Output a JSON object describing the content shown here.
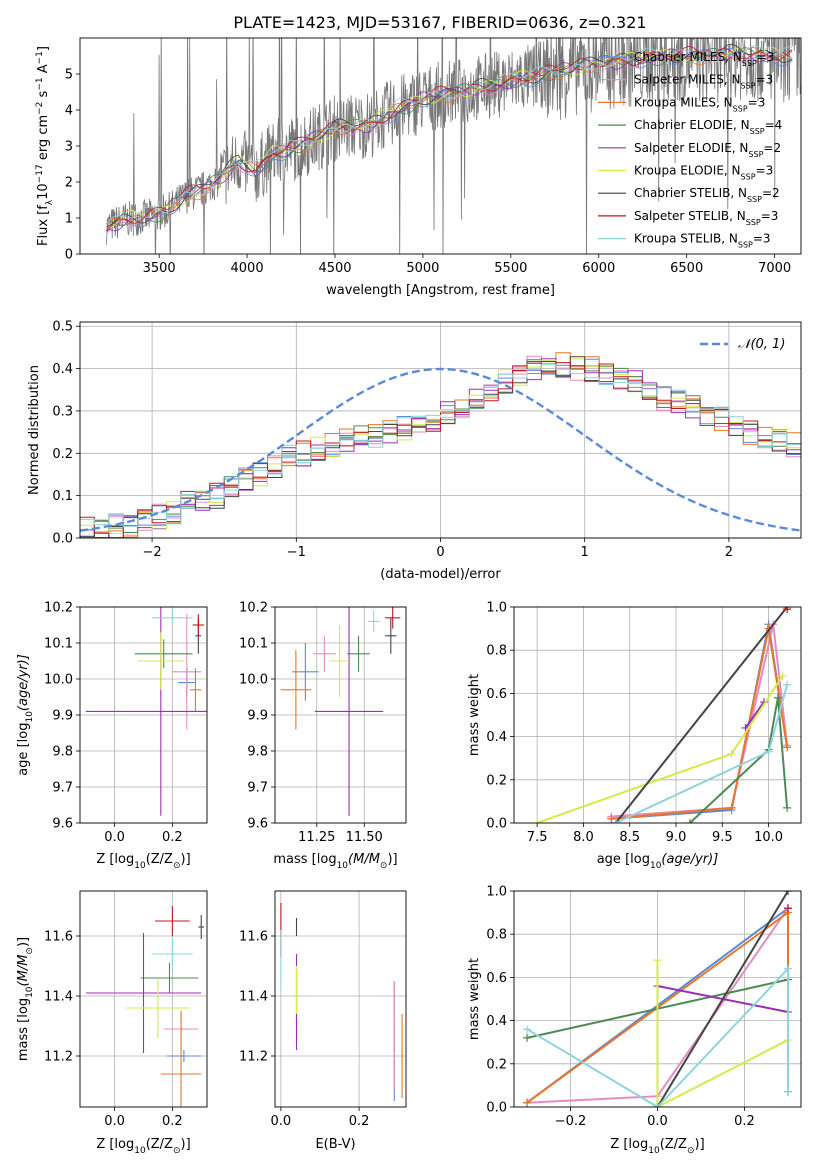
{
  "title": "PLATE=1423, MJD=53167, FIBERID=0636, z=0.321",
  "series": [
    {
      "name": "Chabrier MILES, N$_{SSP}$=3",
      "label_main": "Chabrier MILES, N",
      "label_sub": "SSP",
      "label_tail": "=3",
      "color": "#5b8bd6"
    },
    {
      "name": "Salpeter MILES, N$_{SSP}$=3",
      "label_main": "Salpeter MILES, N",
      "label_sub": "SSP",
      "label_tail": "=3",
      "color": "#e68ac3"
    },
    {
      "name": "Kroupa MILES, N$_{SSP}$=3",
      "label_main": "Kroupa MILES, N",
      "label_sub": "SSP",
      "label_tail": "=3",
      "color": "#e8772a"
    },
    {
      "name": "Chabrier ELODIE, N$_{SSP}$=4",
      "label_main": "Chabrier ELODIE, N",
      "label_sub": "SSP",
      "label_tail": "=4",
      "color": "#4e8a55"
    },
    {
      "name": "Salpeter ELODIE, N$_{SSP}$=2",
      "label_main": "Salpeter ELODIE, N",
      "label_sub": "SSP",
      "label_tail": "=2",
      "color": "#9b30b5"
    },
    {
      "name": "Kroupa ELODIE, N$_{SSP}$=3",
      "label_main": "Kroupa ELODIE, N",
      "label_sub": "SSP",
      "label_tail": "=3",
      "color": "#d4ea4a"
    },
    {
      "name": "Chabrier STELIB, N$_{SSP}$=2",
      "label_main": "Chabrier STELIB, N",
      "label_sub": "SSP",
      "label_tail": "=2",
      "color": "#444444"
    },
    {
      "name": "Salpeter STELIB, N$_{SSP}$=3",
      "label_main": "Salpeter STELIB, N",
      "label_sub": "SSP",
      "label_tail": "=3",
      "color": "#c0181f"
    },
    {
      "name": "Kroupa STELIB, N$_{SSP}$=3",
      "label_main": "Kroupa STELIB, N",
      "label_sub": "SSP",
      "label_tail": "=3",
      "color": "#8fd3dc"
    }
  ],
  "chart_data": [
    {
      "id": "spectrum",
      "type": "line",
      "xlabel": "wavelength [Angstrom, rest frame]",
      "ylabel_parts": [
        "Flux [f",
        "λ",
        "10",
        "−17",
        " erg cm",
        "−2",
        " s",
        "−1",
        " A",
        "−1",
        "]"
      ],
      "xlim": [
        3050,
        7150
      ],
      "ylim": [
        0,
        6
      ],
      "xticks": [
        3500,
        4000,
        4500,
        5000,
        5500,
        6000,
        6500,
        7000
      ],
      "yticks": [
        0,
        1,
        2,
        3,
        4,
        5
      ],
      "data_color": "#777777",
      "model_profile": {
        "x": [
          3200,
          3300,
          3450,
          3550,
          3650,
          3750,
          3850,
          3950,
          4050,
          4150,
          4300,
          4500,
          4700,
          4850,
          5000,
          5200,
          5400,
          5600,
          5800,
          6000,
          6200,
          6400,
          6600,
          6800,
          7000
        ],
        "y": [
          0.75,
          0.95,
          1.05,
          1.2,
          1.6,
          1.8,
          2.1,
          2.6,
          2.3,
          2.8,
          3.0,
          3.5,
          3.6,
          4.0,
          4.3,
          4.5,
          4.7,
          4.9,
          5.1,
          5.3,
          5.4,
          5.5,
          5.5,
          5.6,
          5.5
        ]
      }
    },
    {
      "id": "residuals",
      "type": "step",
      "xlabel": "(data-model)/error",
      "ylabel": "Normed distribution",
      "xlim": [
        -2.5,
        2.5
      ],
      "ylim": [
        0,
        0.51
      ],
      "xticks": [
        -2,
        -1,
        0,
        1,
        2
      ],
      "xtick_labels": [
        "−2",
        "−1",
        "0",
        "1",
        "2"
      ],
      "yticks": [
        0.0,
        0.1,
        0.2,
        0.3,
        0.4,
        0.5
      ],
      "ytick_labels": [
        "0.0",
        "0.1",
        "0.2",
        "0.3",
        "0.4",
        "0.5"
      ],
      "bin_width": 0.1,
      "bins_start": -2.5,
      "base_profile": [
        0.02,
        0.02,
        0.03,
        0.03,
        0.04,
        0.05,
        0.06,
        0.08,
        0.09,
        0.1,
        0.12,
        0.14,
        0.15,
        0.17,
        0.19,
        0.2,
        0.21,
        0.22,
        0.23,
        0.24,
        0.24,
        0.25,
        0.26,
        0.27,
        0.28,
        0.3,
        0.31,
        0.33,
        0.35,
        0.37,
        0.39,
        0.4,
        0.4,
        0.41,
        0.4,
        0.4,
        0.39,
        0.38,
        0.37,
        0.35,
        0.33,
        0.32,
        0.31,
        0.29,
        0.28,
        0.26,
        0.25,
        0.24,
        0.23,
        0.22,
        0.21,
        0.2,
        0.19,
        0.18,
        0.17,
        0.15,
        0.14,
        0.12,
        0.11,
        0.1,
        0.09,
        0.08,
        0.07,
        0.06,
        0.06,
        0.05,
        0.05,
        0.04,
        0.04,
        0.03,
        0.03,
        0.03,
        0.02,
        0.02,
        0.02,
        0.02,
        0.02,
        0.02,
        0.02,
        0.02
      ],
      "legend_label": "𝒩(0, 1)",
      "gaussian": {
        "mu": 0,
        "sigma": 1,
        "color": "#5b8bd6"
      }
    },
    {
      "id": "age_vs_Z",
      "type": "errorbar",
      "xlabel_main": "Z [log",
      "xlabel_sub": "10",
      "xlabel_tail": "(Z/Z",
      "xlabel_end": ")]",
      "ylabel_main": "age  [log",
      "ylabel_sub": "10",
      "ylabel_tail": "(age/yr)]",
      "xlim": [
        -0.12,
        0.32
      ],
      "ylim": [
        9.6,
        10.2
      ],
      "xticks": [
        0.0,
        0.2
      ],
      "xtick_labels": [
        "0.0",
        "0.2"
      ],
      "yticks": [
        9.6,
        9.7,
        9.8,
        9.9,
        10.0,
        10.1,
        10.2
      ],
      "ytick_labels": [
        "9.6",
        "9.7",
        "9.8",
        "9.9",
        "10.0",
        "10.1",
        "10.2"
      ],
      "points": [
        {
          "s": 0,
          "x": 0.25,
          "xerr": 0.03,
          "y": 9.99,
          "yerr": 0.04
        },
        {
          "s": 1,
          "x": 0.25,
          "xerr": 0.05,
          "y": 10.02,
          "yerr": 0.16
        },
        {
          "s": 2,
          "x": 0.28,
          "xerr": 0.02,
          "y": 9.97,
          "yerr": 0.06
        },
        {
          "s": 3,
          "x": 0.17,
          "xerr": 0.1,
          "y": 10.07,
          "yerr": 0.04
        },
        {
          "s": 4,
          "x": 0.16,
          "xerr": 0.26,
          "y": 9.91,
          "yerr": 0.29
        },
        {
          "s": 5,
          "x": 0.16,
          "xerr": 0.08,
          "y": 10.05,
          "yerr": 0.08
        },
        {
          "s": 6,
          "x": 0.29,
          "xerr": 0.01,
          "y": 10.12,
          "yerr": 0.05
        },
        {
          "s": 7,
          "x": 0.29,
          "xerr": 0.02,
          "y": 10.15,
          "yerr": 0.03
        },
        {
          "s": 8,
          "x": 0.2,
          "xerr": 0.07,
          "y": 10.17,
          "yerr": 0.02
        }
      ]
    },
    {
      "id": "age_vs_mass",
      "type": "errorbar",
      "xlabel_main": "mass [log",
      "xlabel_sub": "10",
      "xlabel_tail": "(M/M",
      "xlabel_end": ")]",
      "xlim": [
        11.03,
        11.72
      ],
      "ylim": [
        9.6,
        10.2
      ],
      "xticks": [
        11.25,
        11.5
      ],
      "xtick_labels": [
        "11.25",
        "11.50"
      ],
      "yticks": [
        9.6,
        9.7,
        9.8,
        9.9,
        10.0,
        10.1,
        10.2
      ],
      "ytick_labels": [
        "9.6",
        "9.7",
        "9.8",
        "9.9",
        "10.0",
        "10.1",
        "10.2"
      ],
      "points": [
        {
          "s": 0,
          "x": 11.19,
          "xerr": 0.07,
          "y": 10.02,
          "yerr": 0.08
        },
        {
          "s": 1,
          "x": 11.29,
          "xerr": 0.06,
          "y": 10.07,
          "yerr": 0.05
        },
        {
          "s": 2,
          "x": 11.14,
          "xerr": 0.08,
          "y": 9.97,
          "yerr": 0.11
        },
        {
          "s": 3,
          "x": 11.47,
          "xerr": 0.06,
          "y": 10.07,
          "yerr": 0.05
        },
        {
          "s": 4,
          "x": 11.42,
          "xerr": 0.18,
          "y": 9.91,
          "yerr": 0.29
        },
        {
          "s": 5,
          "x": 11.37,
          "xerr": 0.05,
          "y": 10.05,
          "yerr": 0.1
        },
        {
          "s": 6,
          "x": 11.64,
          "xerr": 0.03,
          "y": 10.12,
          "yerr": 0.05
        },
        {
          "s": 7,
          "x": 11.65,
          "xerr": 0.04,
          "y": 10.17,
          "yerr": 0.03
        },
        {
          "s": 8,
          "x": 11.55,
          "xerr": 0.03,
          "y": 10.16,
          "yerr": 0.03
        }
      ]
    },
    {
      "id": "mass_vs_Z",
      "type": "errorbar",
      "xlabel_main": "Z [log",
      "xlabel_sub": "10",
      "xlabel_tail": "(Z/Z",
      "xlabel_end": ")]",
      "ylabel_main": "mass [log",
      "ylabel_sub": "10",
      "ylabel_tail": "(M/M",
      "ylabel_end": ")]",
      "xlim": [
        -0.12,
        0.32
      ],
      "ylim": [
        11.03,
        11.75
      ],
      "xticks": [
        0.0,
        0.2
      ],
      "xtick_labels": [
        "0.0",
        "0.2"
      ],
      "yticks": [
        11.2,
        11.4,
        11.6
      ],
      "ytick_labels": [
        "11.2",
        "11.4",
        "11.6"
      ],
      "points": [
        {
          "s": 0,
          "x": 0.24,
          "xerr": 0.06,
          "y": 11.2,
          "yerr": 0.02
        },
        {
          "s": 1,
          "x": 0.23,
          "xerr": 0.06,
          "y": 11.29,
          "yerr": 0.06
        },
        {
          "s": 2,
          "x": 0.23,
          "xerr": 0.07,
          "y": 11.14,
          "yerr": 0.21
        },
        {
          "s": 3,
          "x": 0.19,
          "xerr": 0.1,
          "y": 11.46,
          "yerr": 0.05
        },
        {
          "s": 4,
          "x": 0.1,
          "xerr": 0.2,
          "y": 11.41,
          "yerr": 0.2
        },
        {
          "s": 5,
          "x": 0.15,
          "xerr": 0.11,
          "y": 11.36,
          "yerr": 0.1
        },
        {
          "s": 6,
          "x": 0.3,
          "xerr": 0.01,
          "y": 11.63,
          "yerr": 0.04
        },
        {
          "s": 7,
          "x": 0.2,
          "xerr": 0.06,
          "y": 11.65,
          "yerr": 0.05
        },
        {
          "s": 8,
          "x": 0.2,
          "xerr": 0.07,
          "y": 11.54,
          "yerr": 0.06
        }
      ]
    },
    {
      "id": "mass_vs_ebv",
      "type": "errorbar",
      "xlabel": "E(B-V)",
      "xlim": [
        -0.015,
        0.32
      ],
      "ylim": [
        11.03,
        11.75
      ],
      "xticks": [
        0.0,
        0.2
      ],
      "xtick_labels": [
        "0.0",
        "0.2"
      ],
      "yticks": [
        11.2,
        11.4,
        11.6
      ],
      "ytick_labels": [
        "11.2",
        "11.4",
        "11.6"
      ],
      "points": [
        {
          "s": 0,
          "x": 0.29,
          "xerr": 0,
          "y": 11.25,
          "yerr": 0.2
        },
        {
          "s": 1,
          "x": 0.29,
          "xerr": 0,
          "y": 11.27,
          "yerr": 0.18
        },
        {
          "s": 2,
          "x": 0.31,
          "xerr": 0,
          "y": 11.2,
          "yerr": 0.14
        },
        {
          "s": 3,
          "x": 0.04,
          "xerr": 0,
          "y": 11.4,
          "yerr": 0.1
        },
        {
          "s": 4,
          "x": 0.04,
          "xerr": 0,
          "y": 11.38,
          "yerr": 0.16
        },
        {
          "s": 5,
          "x": 0.04,
          "xerr": 0,
          "y": 11.42,
          "yerr": 0.08
        },
        {
          "s": 6,
          "x": 0.04,
          "xerr": 0,
          "y": 11.63,
          "yerr": 0.03
        },
        {
          "s": 7,
          "x": 0.0,
          "xerr": 0,
          "y": 11.62,
          "yerr": 0.09
        },
        {
          "s": 8,
          "x": 0.0,
          "xerr": 0,
          "y": 11.52,
          "yerr": 0.1
        }
      ]
    },
    {
      "id": "weight_vs_age",
      "type": "line",
      "xlabel_main": "age  [log",
      "xlabel_sub": "10",
      "xlabel_tail": "(age/yr)]",
      "ylabel": "mass weight",
      "xlim": [
        7.25,
        10.35
      ],
      "ylim": [
        0,
        1.0
      ],
      "xticks": [
        7.5,
        8.0,
        8.5,
        9.0,
        9.5,
        10.0
      ],
      "xtick_labels": [
        "7.5",
        "8.0",
        "8.5",
        "9.0",
        "9.5",
        "10.0"
      ],
      "yticks": [
        0.0,
        0.2,
        0.4,
        0.6,
        0.8,
        1.0
      ],
      "ytick_labels": [
        "0.0",
        "0.2",
        "0.4",
        "0.6",
        "0.8",
        "1.0"
      ],
      "lines": [
        {
          "s": 0,
          "x": [
            8.3,
            9.6,
            10.0,
            10.2
          ],
          "y": [
            0.02,
            0.06,
            0.92,
            0.35
          ]
        },
        {
          "s": 1,
          "x": [
            8.3,
            9.6,
            10.05,
            10.2
          ],
          "y": [
            0.03,
            0.07,
            0.92,
            0.36
          ]
        },
        {
          "s": 2,
          "x": [
            8.3,
            9.6,
            10.0,
            10.2
          ],
          "y": [
            0.02,
            0.07,
            0.9,
            0.35
          ]
        },
        {
          "s": 3,
          "x": [
            9.15,
            10.0,
            10.1,
            10.2
          ],
          "y": [
            0.0,
            0.34,
            0.58,
            0.07
          ]
        },
        {
          "s": 4,
          "x": [
            9.75,
            9.95
          ],
          "y": [
            0.44,
            0.56
          ]
        },
        {
          "s": 5,
          "x": [
            7.5,
            9.6,
            10.15
          ],
          "y": [
            0.0,
            0.32,
            0.68
          ]
        },
        {
          "s": 6,
          "x": [
            8.35,
            10.2
          ],
          "y": [
            0.0,
            1.0
          ]
        },
        {
          "s": 7,
          "x": [
            10.2
          ],
          "y": [
            0.99
          ]
        },
        {
          "s": 8,
          "x": [
            8.35,
            10.0,
            10.2
          ],
          "y": [
            0.0,
            0.33,
            0.64
          ]
        }
      ]
    },
    {
      "id": "weight_vs_Z",
      "type": "line",
      "xlabel_main": "Z [log",
      "xlabel_sub": "10",
      "xlabel_tail": "(Z/Z",
      "xlabel_end": ")]",
      "ylabel": "mass weight",
      "xlim": [
        -0.33,
        0.33
      ],
      "ylim": [
        0,
        1.0
      ],
      "xticks": [
        -0.2,
        0.0,
        0.2
      ],
      "xtick_labels": [
        "−0.2",
        "0.0",
        "0.2"
      ],
      "yticks": [
        0.0,
        0.2,
        0.4,
        0.6,
        0.8,
        1.0
      ],
      "ytick_labels": [
        "0.0",
        "0.2",
        "0.4",
        "0.6",
        "0.8",
        "1.0"
      ],
      "lines": [
        {
          "s": 0,
          "x": [
            -0.3,
            0.3
          ],
          "y": [
            0.02,
            0.92
          ]
        },
        {
          "s": 1,
          "x": [
            -0.3,
            0.0,
            0.3
          ],
          "y": [
            0.02,
            0.05,
            0.92
          ]
        },
        {
          "s": 2,
          "x": [
            -0.3,
            0.3,
            0.3
          ],
          "y": [
            0.02,
            0.9,
            0.07
          ]
        },
        {
          "s": 3,
          "x": [
            -0.3,
            0.3,
            0.3
          ],
          "y": [
            0.32,
            0.59,
            0.07
          ]
        },
        {
          "s": 4,
          "x": [
            0.0,
            0.3
          ],
          "y": [
            0.56,
            0.44
          ]
        },
        {
          "s": 5,
          "x": [
            0.0,
            0.0,
            0.3
          ],
          "y": [
            0.68,
            0.0,
            0.31
          ]
        },
        {
          "s": 6,
          "x": [
            0.0,
            0.3
          ],
          "y": [
            0.0,
            1.0
          ]
        },
        {
          "s": 7,
          "x": [
            0.3
          ],
          "y": [
            0.92
          ]
        },
        {
          "s": 8,
          "x": [
            -0.3,
            0.0,
            0.3,
            0.3
          ],
          "y": [
            0.36,
            0.0,
            0.64,
            0.07
          ]
        }
      ]
    }
  ]
}
